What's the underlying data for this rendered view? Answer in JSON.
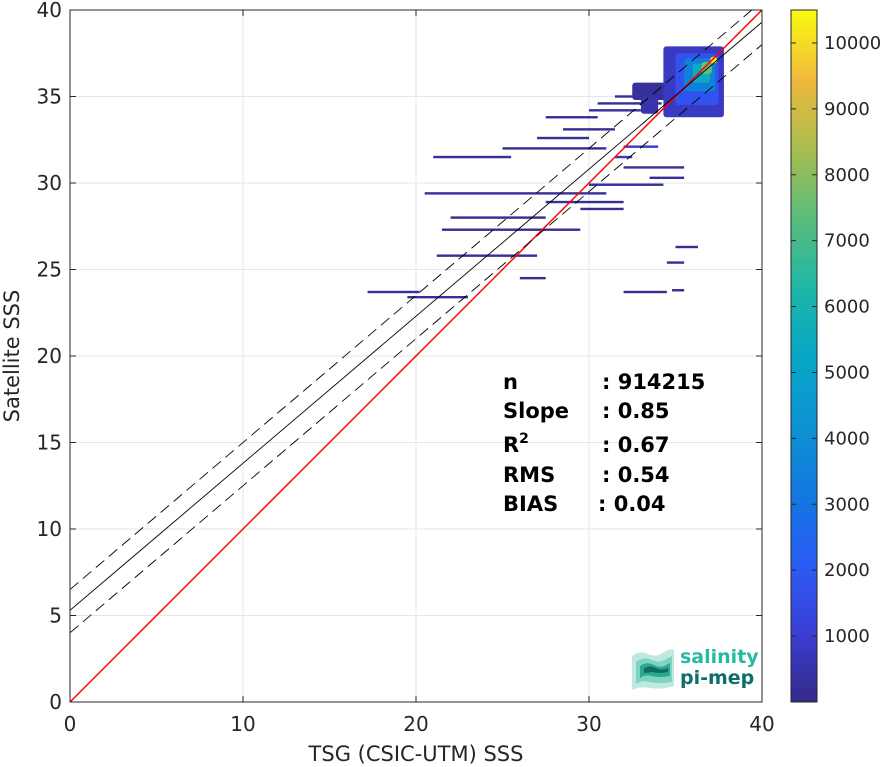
{
  "chart_data": {
    "type": "heatmap",
    "xlabel": "TSG (CSIC-UTM) SSS",
    "ylabel": "Satellite SSS",
    "xlim": [
      0,
      40
    ],
    "ylim": [
      0,
      40
    ],
    "xticks": [
      "0",
      "10",
      "20",
      "30",
      "40"
    ],
    "yticks": [
      "0",
      "5",
      "10",
      "15",
      "20",
      "25",
      "30",
      "35",
      "40"
    ],
    "grid": true,
    "colorbar": {
      "range": [
        0,
        10500
      ],
      "ticks": [
        "1000",
        "2000",
        "3000",
        "4000",
        "5000",
        "6000",
        "7000",
        "8000",
        "9000",
        "10000"
      ],
      "colormap": "parula"
    },
    "lines": [
      {
        "label": "1:1",
        "color": "#ff0000",
        "style": "solid",
        "x": [
          0,
          40
        ],
        "y": [
          0,
          40
        ]
      },
      {
        "label": "regression",
        "color": "#000000",
        "style": "solid",
        "x": [
          0,
          40
        ],
        "y": [
          5.3,
          39.3
        ]
      },
      {
        "label": "regression + std",
        "color": "#000000",
        "style": "dashed",
        "x": [
          0,
          40
        ],
        "y": [
          6.5,
          40.5
        ]
      },
      {
        "label": "regression - std",
        "color": "#000000",
        "style": "dashed",
        "x": [
          0,
          40
        ],
        "y": [
          4.0,
          38.0
        ]
      }
    ],
    "stats": [
      {
        "label": "n",
        "value": ": 914215"
      },
      {
        "label": "Slope",
        "value": ": 0.85"
      },
      {
        "label": "R",
        "sup": "2",
        "value": ": 0.67"
      },
      {
        "label": "RMS",
        "value": ": 0.54"
      },
      {
        "label": "BIAS",
        "value": ": 0.04"
      }
    ],
    "density_segments": [
      {
        "x0": 17.2,
        "x1": 20.2,
        "y": 23.7,
        "count": 300
      },
      {
        "x0": 19.5,
        "x1": 23.0,
        "y": 23.4,
        "count": 250
      },
      {
        "x0": 21.2,
        "x1": 27.0,
        "y": 25.8,
        "count": 250
      },
      {
        "x0": 21.5,
        "x1": 29.5,
        "y": 27.3,
        "count": 250
      },
      {
        "x0": 22.0,
        "x1": 27.5,
        "y": 28.0,
        "count": 200
      },
      {
        "x0": 20.5,
        "x1": 31.0,
        "y": 29.4,
        "count": 300
      },
      {
        "x0": 27.5,
        "x1": 32.0,
        "y": 28.9,
        "count": 250
      },
      {
        "x0": 29.5,
        "x1": 32.0,
        "y": 28.5,
        "count": 200
      },
      {
        "x0": 30.0,
        "x1": 34.3,
        "y": 29.9,
        "count": 300
      },
      {
        "x0": 32.0,
        "x1": 35.5,
        "y": 30.9,
        "count": 250
      },
      {
        "x0": 21.0,
        "x1": 25.5,
        "y": 31.5,
        "count": 300
      },
      {
        "x0": 25.0,
        "x1": 31.0,
        "y": 32.0,
        "count": 200
      },
      {
        "x0": 27.0,
        "x1": 30.0,
        "y": 32.6,
        "count": 200
      },
      {
        "x0": 28.5,
        "x1": 31.5,
        "y": 33.1,
        "count": 200
      },
      {
        "x0": 27.5,
        "x1": 30.5,
        "y": 33.8,
        "count": 250
      },
      {
        "x0": 30.0,
        "x1": 33.0,
        "y": 34.2,
        "count": 300
      },
      {
        "x0": 30.5,
        "x1": 34.2,
        "y": 34.6,
        "count": 250
      },
      {
        "x0": 31.5,
        "x1": 33.5,
        "y": 35.0,
        "count": 200
      },
      {
        "x0": 35.0,
        "x1": 36.3,
        "y": 26.3,
        "count": 200
      },
      {
        "x0": 34.5,
        "x1": 35.5,
        "y": 25.4,
        "count": 200
      },
      {
        "x0": 34.8,
        "x1": 35.5,
        "y": 23.8,
        "count": 150
      },
      {
        "x0": 26.0,
        "x1": 27.5,
        "y": 24.5,
        "count": 200
      },
      {
        "x0": 32.0,
        "x1": 34.5,
        "y": 23.7,
        "count": 200
      },
      {
        "x0": 32.0,
        "x1": 34.0,
        "y": 32.1,
        "count": 800
      },
      {
        "x0": 31.5,
        "x1": 32.5,
        "y": 31.5,
        "count": 700
      },
      {
        "x0": 33.5,
        "x1": 35.5,
        "y": 30.3,
        "count": 250
      }
    ],
    "density_blobs": [
      {
        "x0": 32.5,
        "x1": 35.5,
        "y0": 34.8,
        "y1": 35.8,
        "count": 300
      },
      {
        "x0": 33.0,
        "x1": 34.0,
        "y0": 34.0,
        "y1": 35.0,
        "count": 500
      },
      {
        "x0": 34.3,
        "x1": 37.8,
        "y0": 33.8,
        "y1": 37.9,
        "count": 800
      },
      {
        "x0": 35.0,
        "x1": 37.5,
        "y0": 34.5,
        "y1": 37.5,
        "count": 1800
      },
      {
        "x0": 35.5,
        "x1": 37.3,
        "y0": 35.3,
        "y1": 37.2,
        "count": 3500
      },
      {
        "x0": 36.0,
        "x1": 37.0,
        "y0": 35.8,
        "y1": 36.9,
        "count": 5500
      },
      {
        "x0": 36.5,
        "x1": 37.1,
        "y0": 36.3,
        "y1": 37.0,
        "count": 7500
      },
      {
        "x0": 37.0,
        "x1": 37.4,
        "y0": 36.9,
        "y1": 37.3,
        "count": 10300
      }
    ]
  },
  "logo": {
    "line1": "salinity",
    "line2": "pi-mep",
    "color1": "#27b9a3",
    "color2": "#0f6e69"
  }
}
